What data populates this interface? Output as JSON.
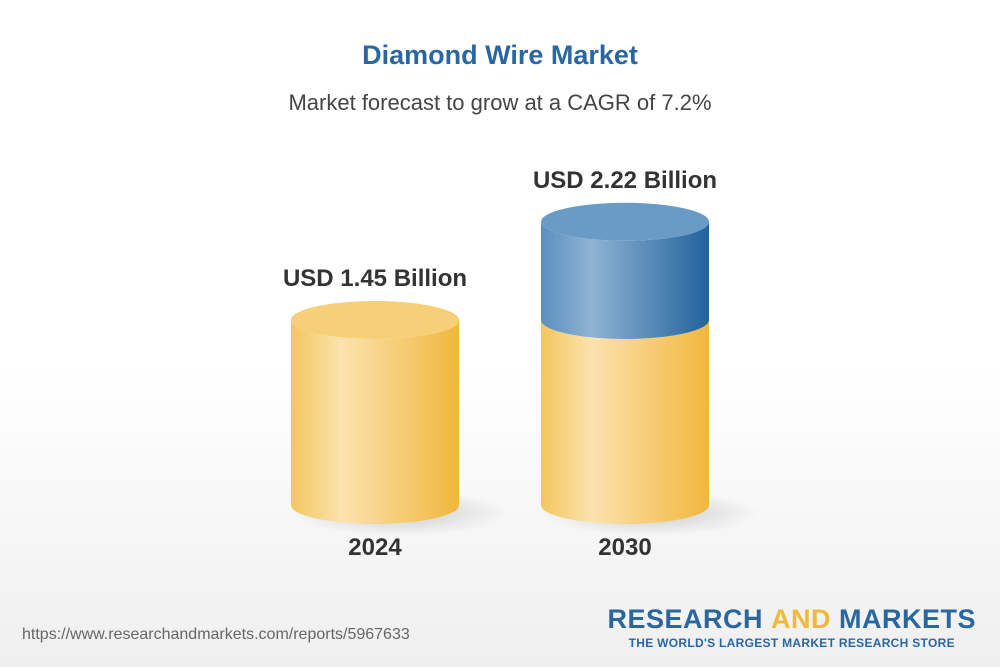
{
  "title": "Diamond Wire Market",
  "subtitle": "Market forecast to grow at a CAGR of 7.2%",
  "url": "https://www.researchandmarkets.com/reports/5967633",
  "logo": {
    "part1": "RESEARCH ",
    "part2": "AND",
    "part3": " MARKETS",
    "tagline": "THE WORLD'S LARGEST MARKET RESEARCH STORE"
  },
  "chart_data": {
    "type": "bar",
    "categories": [
      "2024",
      "2030"
    ],
    "values": [
      1.45,
      2.22
    ],
    "data_labels": [
      "USD 1.45 Billion",
      "USD 2.22 Billion"
    ],
    "colors": {
      "base": "#f4c55a",
      "growth": "#2a67a0"
    }
  }
}
